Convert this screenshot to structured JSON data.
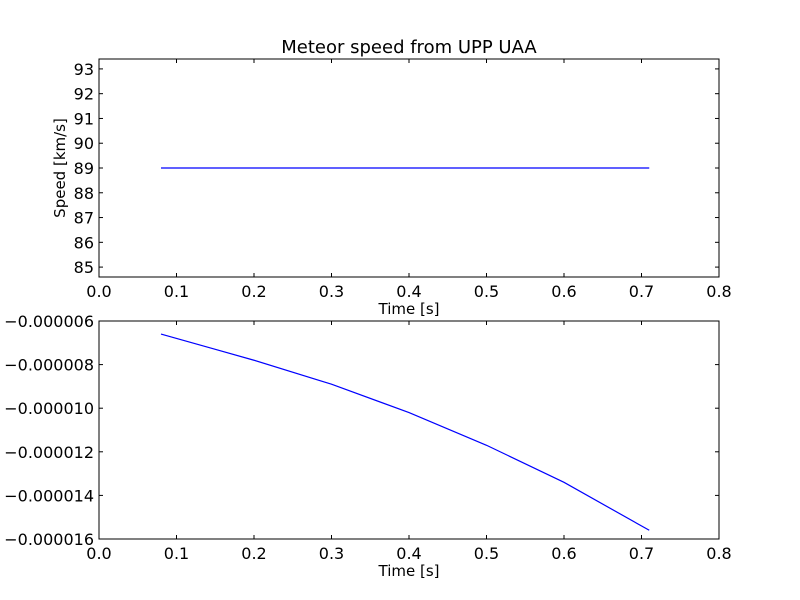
{
  "chart_data": [
    {
      "type": "line",
      "title": "Meteor speed from  UPP UAA",
      "xlabel": "Time [s]",
      "ylabel": "Speed [km/s]",
      "xlim": [
        0.0,
        0.8
      ],
      "ylim": [
        84.6,
        93.4
      ],
      "xticks": [
        0.0,
        0.1,
        0.2,
        0.3,
        0.4,
        0.5,
        0.6,
        0.7,
        0.8
      ],
      "xtick_labels": [
        "0.0",
        "0.1",
        "0.2",
        "0.3",
        "0.4",
        "0.5",
        "0.6",
        "0.7",
        "0.8"
      ],
      "yticks": [
        85,
        86,
        87,
        88,
        89,
        90,
        91,
        92,
        93
      ],
      "ytick_labels": [
        "85",
        "86",
        "87",
        "88",
        "89",
        "90",
        "91",
        "92",
        "93"
      ],
      "grid": false,
      "series": [
        {
          "color": "#0000ff",
          "x": [
            0.08,
            0.71
          ],
          "y": [
            89,
            89
          ]
        }
      ]
    },
    {
      "type": "line",
      "title": "",
      "xlabel": "Time [s]",
      "ylabel": "",
      "xlim": [
        0.0,
        0.8
      ],
      "ylim": [
        -1.6e-05,
        -6e-06
      ],
      "xticks": [
        0.0,
        0.1,
        0.2,
        0.3,
        0.4,
        0.5,
        0.6,
        0.7,
        0.8
      ],
      "xtick_labels": [
        "0.0",
        "0.1",
        "0.2",
        "0.3",
        "0.4",
        "0.5",
        "0.6",
        "0.7",
        "0.8"
      ],
      "yticks": [
        -6e-06,
        -8e-06,
        -1e-05,
        -1.2e-05,
        -1.4e-05,
        -1.6e-05
      ],
      "ytick_labels": [
        "−0.000006",
        "−0.000008",
        "−0.000010",
        "−0.000012",
        "−0.000014",
        "−0.000016"
      ],
      "grid": false,
      "series": [
        {
          "color": "#0000ff",
          "x": [
            0.08,
            0.15,
            0.2,
            0.3,
            0.4,
            0.5,
            0.6,
            0.71
          ],
          "y": [
            -6.6e-06,
            -7.3e-06,
            -7.8e-06,
            -8.9e-06,
            -1.02e-05,
            -1.17e-05,
            -1.34e-05,
            -1.56e-05
          ]
        }
      ]
    }
  ]
}
